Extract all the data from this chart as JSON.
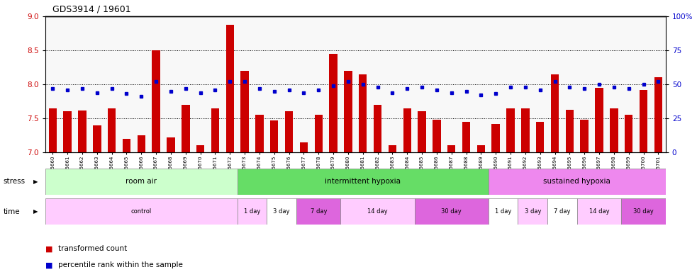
{
  "title": "GDS3914 / 19601",
  "samples": [
    "GSM215660",
    "GSM215661",
    "GSM215662",
    "GSM215663",
    "GSM215664",
    "GSM215665",
    "GSM215666",
    "GSM215667",
    "GSM215668",
    "GSM215669",
    "GSM215670",
    "GSM215671",
    "GSM215672",
    "GSM215673",
    "GSM215674",
    "GSM215675",
    "GSM215676",
    "GSM215677",
    "GSM215678",
    "GSM215679",
    "GSM215680",
    "GSM215681",
    "GSM215682",
    "GSM215683",
    "GSM215684",
    "GSM215685",
    "GSM215686",
    "GSM215687",
    "GSM215688",
    "GSM215689",
    "GSM215690",
    "GSM215691",
    "GSM215692",
    "GSM215693",
    "GSM215694",
    "GSM215695",
    "GSM215696",
    "GSM215697",
    "GSM215698",
    "GSM215699",
    "GSM215700",
    "GSM215701"
  ],
  "bar_values": [
    7.65,
    7.6,
    7.62,
    7.4,
    7.65,
    7.2,
    7.25,
    8.5,
    7.22,
    7.7,
    7.1,
    7.65,
    8.88,
    8.2,
    7.55,
    7.47,
    7.6,
    7.15,
    7.55,
    8.45,
    8.2,
    8.15,
    7.7,
    7.1,
    7.65,
    7.6,
    7.48,
    7.1,
    7.45,
    7.1,
    7.42,
    7.65,
    7.65,
    7.45,
    8.15,
    7.63,
    7.48,
    7.95,
    7.65,
    7.55,
    7.92,
    8.1
  ],
  "percentile_values": [
    47,
    46,
    47,
    44,
    47,
    43,
    41,
    52,
    45,
    47,
    44,
    46,
    52,
    52,
    47,
    45,
    46,
    44,
    46,
    49,
    52,
    50,
    48,
    44,
    47,
    48,
    46,
    44,
    45,
    42,
    43,
    48,
    48,
    46,
    52,
    48,
    47,
    50,
    48,
    47,
    50,
    52
  ],
  "ylim_left": [
    7.0,
    9.0
  ],
  "ylim_right": [
    0,
    100
  ],
  "bar_color": "#CC0000",
  "dot_color": "#0000CC",
  "bg_color": "#F0F0F0",
  "yticks_left": [
    7.0,
    7.5,
    8.0,
    8.5,
    9.0
  ],
  "yticks_right": [
    0,
    25,
    50,
    75,
    100
  ],
  "stress_groups": [
    {
      "label": "room air",
      "start": 0,
      "end": 13,
      "color": "#CCFFCC"
    },
    {
      "label": "intermittent hypoxia",
      "start": 13,
      "end": 30,
      "color": "#66DD66"
    },
    {
      "label": "sustained hypoxia",
      "start": 30,
      "end": 42,
      "color": "#EE88EE"
    }
  ],
  "time_groups": [
    {
      "label": "control",
      "start": 0,
      "end": 13,
      "color": "#FFCCFF"
    },
    {
      "label": "1 day",
      "start": 13,
      "end": 15,
      "color": "#FFCCFF"
    },
    {
      "label": "3 day",
      "start": 15,
      "end": 17,
      "color": "#FFFFFF"
    },
    {
      "label": "7 day",
      "start": 17,
      "end": 20,
      "color": "#EE88EE"
    },
    {
      "label": "14 day",
      "start": 20,
      "end": 25,
      "color": "#FFCCFF"
    },
    {
      "label": "30 day",
      "start": 25,
      "end": 30,
      "color": "#EE88EE"
    },
    {
      "label": "1 day",
      "start": 30,
      "end": 32,
      "color": "#FFFFFF"
    },
    {
      "label": "3 day",
      "start": 32,
      "end": 34,
      "color": "#FFCCFF"
    },
    {
      "label": "7 day",
      "start": 34,
      "end": 36,
      "color": "#FFFFFF"
    },
    {
      "label": "14 day",
      "start": 36,
      "end": 39,
      "color": "#FFCCFF"
    },
    {
      "label": "30 day",
      "start": 39,
      "end": 42,
      "color": "#EE88EE"
    }
  ]
}
